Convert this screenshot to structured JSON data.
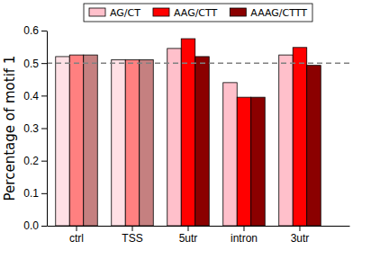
{
  "chart_data": {
    "type": "bar",
    "y_label": "Percentage of motif 1",
    "categories": [
      "ctrl",
      "TSS",
      "5utr",
      "intron",
      "3utr"
    ],
    "series": [
      {
        "name": "AG/CT",
        "color": "#ffc0cb",
        "colors": [
          "#ffe0e5",
          "#ffe0e5",
          "#ffc0cb",
          "#ffc0cb",
          "#ffc0cb"
        ],
        "values": [
          0.52,
          0.51,
          0.545,
          0.44,
          0.525
        ]
      },
      {
        "name": "AAG/CTT",
        "color": "#ff0000",
        "colors": [
          "#ff8080",
          "#ff8080",
          "#ff0000",
          "#ff0000",
          "#ff0000"
        ],
        "values": [
          0.525,
          0.51,
          0.575,
          0.395,
          0.548
        ]
      },
      {
        "name": "AAAG/CTTT",
        "color": "#8b0000",
        "colors": [
          "#c58080",
          "#c58080",
          "#8b0000",
          "#8b0000",
          "#8b0000"
        ],
        "values": [
          0.525,
          0.51,
          0.52,
          0.395,
          0.493
        ]
      }
    ],
    "reference_lines": [
      0.5
    ],
    "ylim": [
      0,
      0.6
    ],
    "yticks": [
      {
        "value": 0,
        "label": "0.0"
      },
      0.1,
      0.2,
      0.3,
      0.4,
      0.5,
      0.6
    ],
    "legend": "top",
    "grid": false
  }
}
